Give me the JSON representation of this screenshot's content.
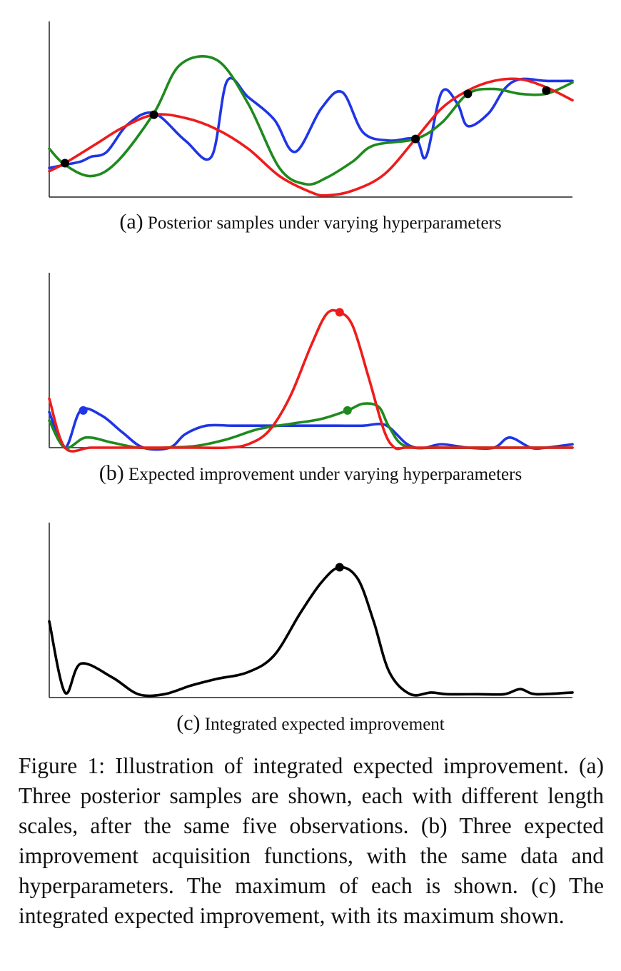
{
  "chart_data": [
    {
      "type": "line",
      "panel_label": "(a)",
      "caption": "Posterior samples under varying hyperparameters",
      "xlim": [
        0,
        1
      ],
      "ylim": [
        0,
        1
      ],
      "series": [
        {
          "color": "#1f35e6",
          "x": [
            0,
            0.03,
            0.06,
            0.08,
            0.11,
            0.15,
            0.2,
            0.26,
            0.31,
            0.34,
            0.38,
            0.43,
            0.47,
            0.52,
            0.56,
            0.6,
            0.65,
            0.7,
            0.72,
            0.75,
            0.78,
            0.8,
            0.84,
            0.87,
            0.9,
            0.95,
            1.0
          ],
          "y": [
            0.18,
            0.2,
            0.22,
            0.25,
            0.28,
            0.45,
            0.52,
            0.35,
            0.25,
            0.72,
            0.62,
            0.48,
            0.28,
            0.55,
            0.65,
            0.4,
            0.35,
            0.36,
            0.25,
            0.65,
            0.58,
            0.44,
            0.52,
            0.67,
            0.73,
            0.72,
            0.72
          ]
        },
        {
          "color": "#1e8a1e",
          "x": [
            0,
            0.03,
            0.08,
            0.13,
            0.2,
            0.25,
            0.32,
            0.38,
            0.44,
            0.49,
            0.53,
            0.58,
            0.62,
            0.7,
            0.75,
            0.8,
            0.85,
            0.9,
            0.95,
            1.0
          ],
          "y": [
            0.3,
            0.2,
            0.13,
            0.22,
            0.52,
            0.82,
            0.85,
            0.58,
            0.18,
            0.08,
            0.12,
            0.22,
            0.32,
            0.36,
            0.46,
            0.64,
            0.67,
            0.64,
            0.64,
            0.71
          ]
        },
        {
          "color": "#ee1c1c",
          "x": [
            0,
            0.03,
            0.09,
            0.14,
            0.2,
            0.26,
            0.32,
            0.38,
            0.44,
            0.5,
            0.53,
            0.58,
            0.64,
            0.7,
            0.75,
            0.8,
            0.85,
            0.9,
            0.95,
            1.0
          ],
          "y": [
            0.16,
            0.21,
            0.33,
            0.43,
            0.51,
            0.49,
            0.42,
            0.3,
            0.13,
            0.03,
            0.01,
            0.04,
            0.14,
            0.36,
            0.55,
            0.66,
            0.72,
            0.73,
            0.68,
            0.6
          ]
        }
      ],
      "markers": [
        {
          "x": 0.03,
          "y": 0.21,
          "color": "#000000"
        },
        {
          "x": 0.2,
          "y": 0.51,
          "color": "#000000"
        },
        {
          "x": 0.7,
          "y": 0.36,
          "color": "#000000"
        },
        {
          "x": 0.8,
          "y": 0.64,
          "color": "#000000"
        },
        {
          "x": 0.95,
          "y": 0.66,
          "color": "#000000"
        }
      ]
    },
    {
      "type": "line",
      "panel_label": "(b)",
      "caption": "Expected improvement under varying hyperparameters",
      "xlim": [
        0,
        1
      ],
      "ylim": [
        0,
        1
      ],
      "series": [
        {
          "color": "#1f35e6",
          "x": [
            0,
            0.03,
            0.06,
            0.1,
            0.14,
            0.18,
            0.23,
            0.26,
            0.3,
            0.35,
            0.4,
            0.45,
            0.5,
            0.55,
            0.6,
            0.63,
            0.65,
            0.68,
            0.7,
            0.72,
            0.75,
            0.8,
            0.85,
            0.88,
            0.92,
            0.95,
            1.0
          ],
          "y": [
            0.21,
            0.0,
            0.22,
            0.19,
            0.09,
            0.0,
            0.0,
            0.08,
            0.13,
            0.13,
            0.13,
            0.13,
            0.13,
            0.13,
            0.13,
            0.14,
            0.12,
            0.03,
            0.0,
            0.0,
            0.02,
            0.0,
            0.0,
            0.06,
            0.0,
            0.0,
            0.02
          ]
        },
        {
          "color": "#1e8a1e",
          "x": [
            0,
            0.03,
            0.07,
            0.12,
            0.17,
            0.22,
            0.28,
            0.34,
            0.4,
            0.46,
            0.52,
            0.57,
            0.6,
            0.63,
            0.65,
            0.68,
            0.75,
            0.85,
            1.0
          ],
          "y": [
            0.16,
            0.0,
            0.06,
            0.03,
            0.0,
            0.0,
            0.01,
            0.05,
            0.11,
            0.14,
            0.17,
            0.22,
            0.26,
            0.24,
            0.12,
            0.01,
            0.0,
            0.0,
            0.0
          ]
        },
        {
          "color": "#ee1c1c",
          "x": [
            0,
            0.03,
            0.08,
            0.15,
            0.2,
            0.28,
            0.34,
            0.38,
            0.42,
            0.46,
            0.5,
            0.53,
            0.555,
            0.58,
            0.61,
            0.64,
            0.66,
            0.68,
            0.72,
            0.8,
            0.9,
            1.0
          ],
          "y": [
            0.29,
            0.0,
            0.0,
            0.0,
            0.0,
            0.0,
            0.0,
            0.02,
            0.1,
            0.3,
            0.6,
            0.79,
            0.8,
            0.72,
            0.42,
            0.1,
            0.0,
            0.0,
            0.0,
            0.0,
            0.0,
            0.0
          ]
        }
      ],
      "markers": [
        {
          "x": 0.065,
          "y": 0.22,
          "color": "#1f35e6"
        },
        {
          "x": 0.57,
          "y": 0.22,
          "color": "#1e8a1e"
        },
        {
          "x": 0.555,
          "y": 0.8,
          "color": "#ee1c1c"
        }
      ]
    },
    {
      "type": "line",
      "panel_label": "(c)",
      "caption": "Integrated expected improvement",
      "xlim": [
        0,
        1
      ],
      "ylim": [
        0,
        1
      ],
      "series": [
        {
          "color": "#000000",
          "x": [
            0,
            0.03,
            0.06,
            0.12,
            0.17,
            0.22,
            0.27,
            0.32,
            0.38,
            0.43,
            0.48,
            0.52,
            0.555,
            0.59,
            0.62,
            0.65,
            0.69,
            0.73,
            0.76,
            0.82,
            0.87,
            0.9,
            0.93,
            1.0
          ],
          "y": [
            0.45,
            0.03,
            0.2,
            0.12,
            0.02,
            0.02,
            0.07,
            0.11,
            0.15,
            0.25,
            0.5,
            0.68,
            0.77,
            0.7,
            0.45,
            0.15,
            0.02,
            0.03,
            0.02,
            0.02,
            0.02,
            0.05,
            0.02,
            0.03
          ]
        }
      ],
      "markers": [
        {
          "x": 0.555,
          "y": 0.77,
          "color": "#000000"
        }
      ]
    }
  ],
  "figure_caption": "Figure 1: Illustration of integrated expected improvement. (a) Three posterior samples are shown, each with different length scales, after the same five observations. (b) Three expected improvement acquisition functions, with the same data and hyperparameters. The maximum of each is shown. (c) The integrated expected improvement, with its maximum shown."
}
